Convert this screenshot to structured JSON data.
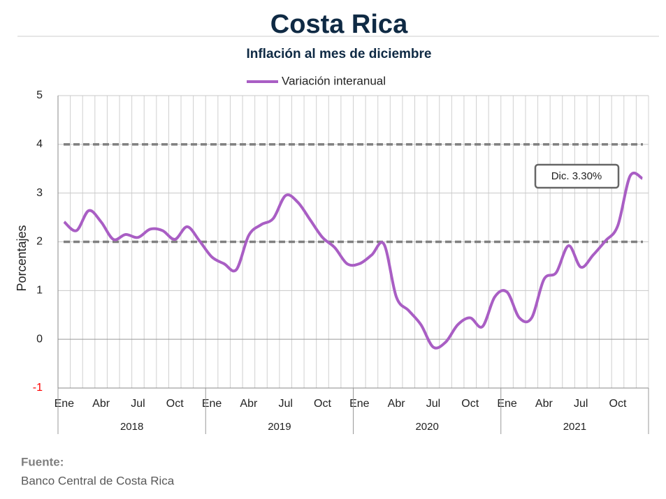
{
  "chart_data": {
    "type": "line",
    "title": "Costa Rica",
    "subtitle": "Inflación al mes de diciembre",
    "y_label": "Porcentajes",
    "categories": [
      "Ene",
      null,
      null,
      "Abr",
      null,
      null,
      "Jul",
      null,
      null,
      "Oct",
      null,
      null,
      "Ene",
      null,
      null,
      "Abr",
      null,
      null,
      "Jul",
      null,
      null,
      "Oct",
      null,
      null,
      "Ene",
      null,
      null,
      "Abr",
      null,
      null,
      "Jul",
      null,
      null,
      "Oct",
      null,
      null,
      "Ene",
      null,
      null,
      "Abr",
      null,
      null,
      "Jul",
      null,
      null,
      "Oct",
      null,
      null
    ],
    "groups": [
      "2018",
      "2019",
      "2020",
      "2021"
    ],
    "series": [
      {
        "name": "Variación interanual",
        "color": "#a95ec4",
        "values": [
          2.41,
          2.23,
          2.64,
          2.41,
          2.05,
          2.15,
          2.09,
          2.26,
          2.23,
          2.05,
          2.31,
          2.02,
          1.69,
          1.55,
          1.43,
          2.13,
          2.35,
          2.48,
          2.95,
          2.81,
          2.45,
          2.09,
          1.88,
          1.55,
          1.55,
          1.73,
          1.95,
          0.87,
          0.59,
          0.3,
          -0.16,
          -0.06,
          0.3,
          0.44,
          0.26,
          0.87,
          0.97,
          0.44,
          0.44,
          1.23,
          1.37,
          1.92,
          1.48,
          1.73,
          2.02,
          2.33,
          3.35,
          3.3
        ]
      }
    ],
    "ylim": [
      -1,
      5
    ],
    "yticks": [
      -1,
      0,
      1,
      2,
      3,
      4,
      5
    ],
    "negative_tick_color": "#ff0000",
    "reference_lines": [
      2,
      4
    ],
    "annotation": "Dic. 3.30%",
    "legend": "top",
    "source_title": "Fuente:",
    "source": "Banco Central de Costa Rica"
  }
}
